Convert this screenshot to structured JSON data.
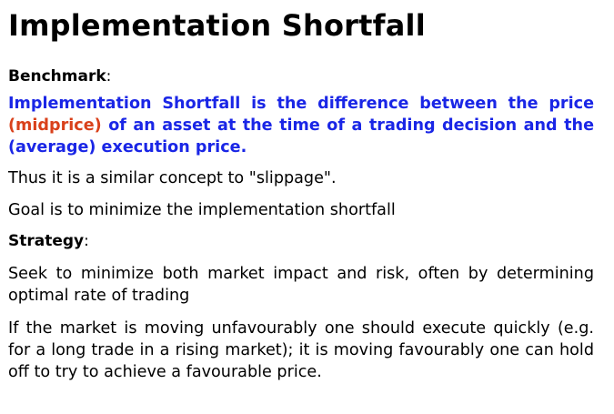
{
  "title": "Implementation Shortfall",
  "benchmark": {
    "label": "Benchmark",
    "colon": ":"
  },
  "definition": {
    "part1": "Implementation Shortfall is the difference between the price ",
    "highlight": "(midprice)",
    "part2": " of an asset at the time of a trading decision and the (average) execution price.",
    "color": "#1a26e6",
    "highlight_color": "#d9411b"
  },
  "paragraphs": {
    "slippage": "Thus it is a similar concept to \"slippage\".",
    "goal": "Goal is to minimize the implementation shortfall"
  },
  "strategy": {
    "label": "Strategy",
    "colon": ":",
    "seek": "Seek to minimize both market impact and risk, often by determining optimal rate of trading",
    "market": "If the market is moving unfavourably one should execute quickly (e.g. for a long trade in a rising market); it is moving favourably one can hold off to try to achieve a favourable price."
  }
}
